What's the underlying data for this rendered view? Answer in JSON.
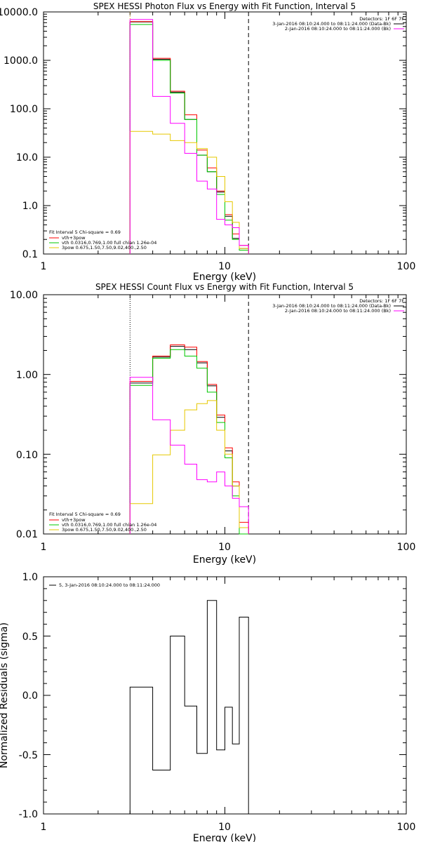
{
  "chart_data": [
    {
      "type": "line",
      "title": "SPEX HESSI Photon Flux vs Energy with Fit Function, Interval 5",
      "xlabel": "Energy (keV)",
      "ylabel": "",
      "xscale": "log",
      "yscale": "log",
      "xlim": [
        1,
        100
      ],
      "ylim": [
        0.1,
        10000
      ],
      "x_ticks": [
        "1",
        "10",
        "100"
      ],
      "y_ticks": [
        "0.1",
        "1.0",
        "10.0",
        "100.0",
        "1000.0",
        "10000.0"
      ],
      "grid": false,
      "legend_info": {
        "detectors": "Detectors: 1F 6F 7F",
        "entries": [
          {
            "label": "3-Jan-2016 08:10:24.000 to 08:11:24.000 (Data-Bk)",
            "color": "#000000"
          },
          {
            "label": "2-Jan-2016 08:10:24.000 to 08:11:24.000 (Bk)",
            "color": "#ff00ff"
          }
        ]
      },
      "fit_legend": {
        "header": "Fit Interval 5   Chi-square = 0.69",
        "entries": [
          {
            "label": "vth+3pow",
            "color": "#ff0000"
          },
          {
            "label": "vth 0.0316,0.769,1.00  full chian 1.26e-04",
            "color": "#00c800"
          },
          {
            "label": "3pow 0.675,1.50,7.50,9.02,400.,2.50",
            "color": "#e6c800"
          }
        ]
      },
      "vlines": [
        {
          "x": 3.0,
          "style": "dotted",
          "color": "#e6a000"
        },
        {
          "x": 13.5,
          "style": "dashed",
          "color": "#000000"
        }
      ],
      "bin_edges": [
        3.0,
        4.0,
        5.0,
        6.0,
        7.0,
        8.0,
        9.0,
        10.0,
        11.0,
        12.0,
        13.5
      ],
      "series": [
        {
          "color": "#000000",
          "values": [
            6200,
            1050,
            220,
            60,
            11,
            5.0,
            1.9,
            0.6,
            0.21,
            0.13
          ]
        },
        {
          "color": "#ff0000",
          "values": [
            6300,
            1100,
            230,
            75,
            14,
            6.0,
            2.0,
            0.65,
            0.26,
            0.15
          ]
        },
        {
          "color": "#00c800",
          "values": [
            5500,
            1000,
            210,
            60,
            11,
            5.0,
            1.7,
            0.5,
            0.2,
            0.12
          ]
        },
        {
          "color": "#e6c800",
          "values": [
            34,
            30,
            22,
            20,
            15,
            10,
            4.0,
            1.2,
            0.45,
            0.13
          ]
        },
        {
          "color": "#ff00ff",
          "values": [
            7000,
            180,
            50,
            12,
            3.2,
            2.2,
            0.52,
            0.4,
            0.35,
            0.15
          ]
        }
      ]
    },
    {
      "type": "line",
      "title": "SPEX HESSI Count Flux vs Energy with Fit Function, Interval 5",
      "xlabel": "Energy (keV)",
      "ylabel": "",
      "xscale": "log",
      "yscale": "log",
      "xlim": [
        1,
        100
      ],
      "ylim": [
        0.01,
        10
      ],
      "x_ticks": [
        "1",
        "10",
        "100"
      ],
      "y_ticks": [
        "0.01",
        "0.10",
        "1.00",
        "10.00"
      ],
      "grid": false,
      "legend_info": {
        "detectors": "Detectors: 1F 6F 7F",
        "entries": [
          {
            "label": "3-Jan-2016 08:10:24.000 to 08:11:24.000 (Data-Bk)",
            "color": "#000000"
          },
          {
            "label": "2-Jan-2016 08:10:24.000 to 08:11:24.000 (Bk)",
            "color": "#ff00ff"
          }
        ]
      },
      "fit_legend": {
        "header": "Fit Interval 5   Chi-square = 0.69",
        "entries": [
          {
            "label": "vth+3pow",
            "color": "#ff0000"
          },
          {
            "label": "vth 0.0316,0.769,1.00  full chian 1.26e-04",
            "color": "#00c800"
          },
          {
            "label": "3pow 0.675,1.50,7.50,9.02,400.,2.50",
            "color": "#e6c800"
          }
        ]
      },
      "vlines": [
        {
          "x": 3.0,
          "style": "dotted",
          "color": "#000000"
        },
        {
          "x": 13.5,
          "style": "dashed",
          "color": "#000000"
        }
      ],
      "bin_edges": [
        3.0,
        4.0,
        5.0,
        6.0,
        7.0,
        8.0,
        9.0,
        10.0,
        11.0,
        12.0,
        13.5
      ],
      "series": [
        {
          "color": "#000000",
          "values": [
            0.78,
            1.65,
            2.25,
            2.05,
            1.4,
            0.72,
            0.29,
            0.11,
            0.04,
            0.012
          ]
        },
        {
          "color": "#ff0000",
          "values": [
            0.82,
            1.7,
            2.35,
            2.2,
            1.45,
            0.75,
            0.31,
            0.12,
            0.045,
            0.014
          ]
        },
        {
          "color": "#00c800",
          "values": [
            0.73,
            1.6,
            2.05,
            1.7,
            1.2,
            0.6,
            0.25,
            0.09,
            0.03,
            0.01
          ]
        },
        {
          "color": "#e6c800",
          "values": [
            0.024,
            0.098,
            0.2,
            0.36,
            0.43,
            0.47,
            0.2,
            0.1,
            0.04,
            0.012
          ]
        },
        {
          "color": "#ff00ff",
          "values": [
            0.92,
            0.27,
            0.13,
            0.075,
            0.048,
            0.045,
            0.06,
            0.04,
            0.028,
            0.022
          ]
        }
      ]
    },
    {
      "type": "line",
      "title": "",
      "xlabel": "Energy (keV)",
      "ylabel": "Normalized Residuals (sigma)",
      "xscale": "log",
      "yscale": "linear",
      "xlim": [
        1,
        100
      ],
      "ylim": [
        -1.0,
        1.0
      ],
      "x_ticks": [
        "1",
        "10",
        "100"
      ],
      "y_ticks": [
        "-1.0",
        "-0.5",
        "0.0",
        "0.5",
        "1.0"
      ],
      "grid": false,
      "legend": {
        "label": "5, 3-Jan-2016 08:10:24.000 to 08:11:24.000",
        "color": "#000000"
      },
      "bin_edges": [
        3.0,
        4.0,
        5.0,
        6.0,
        7.0,
        8.0,
        9.0,
        10.0,
        11.0,
        12.0,
        13.5
      ],
      "series": [
        {
          "color": "#000000",
          "values": [
            0.07,
            -0.63,
            0.5,
            -0.09,
            -0.49,
            0.8,
            -0.46,
            -0.1,
            -0.41,
            0.66
          ]
        }
      ]
    }
  ]
}
